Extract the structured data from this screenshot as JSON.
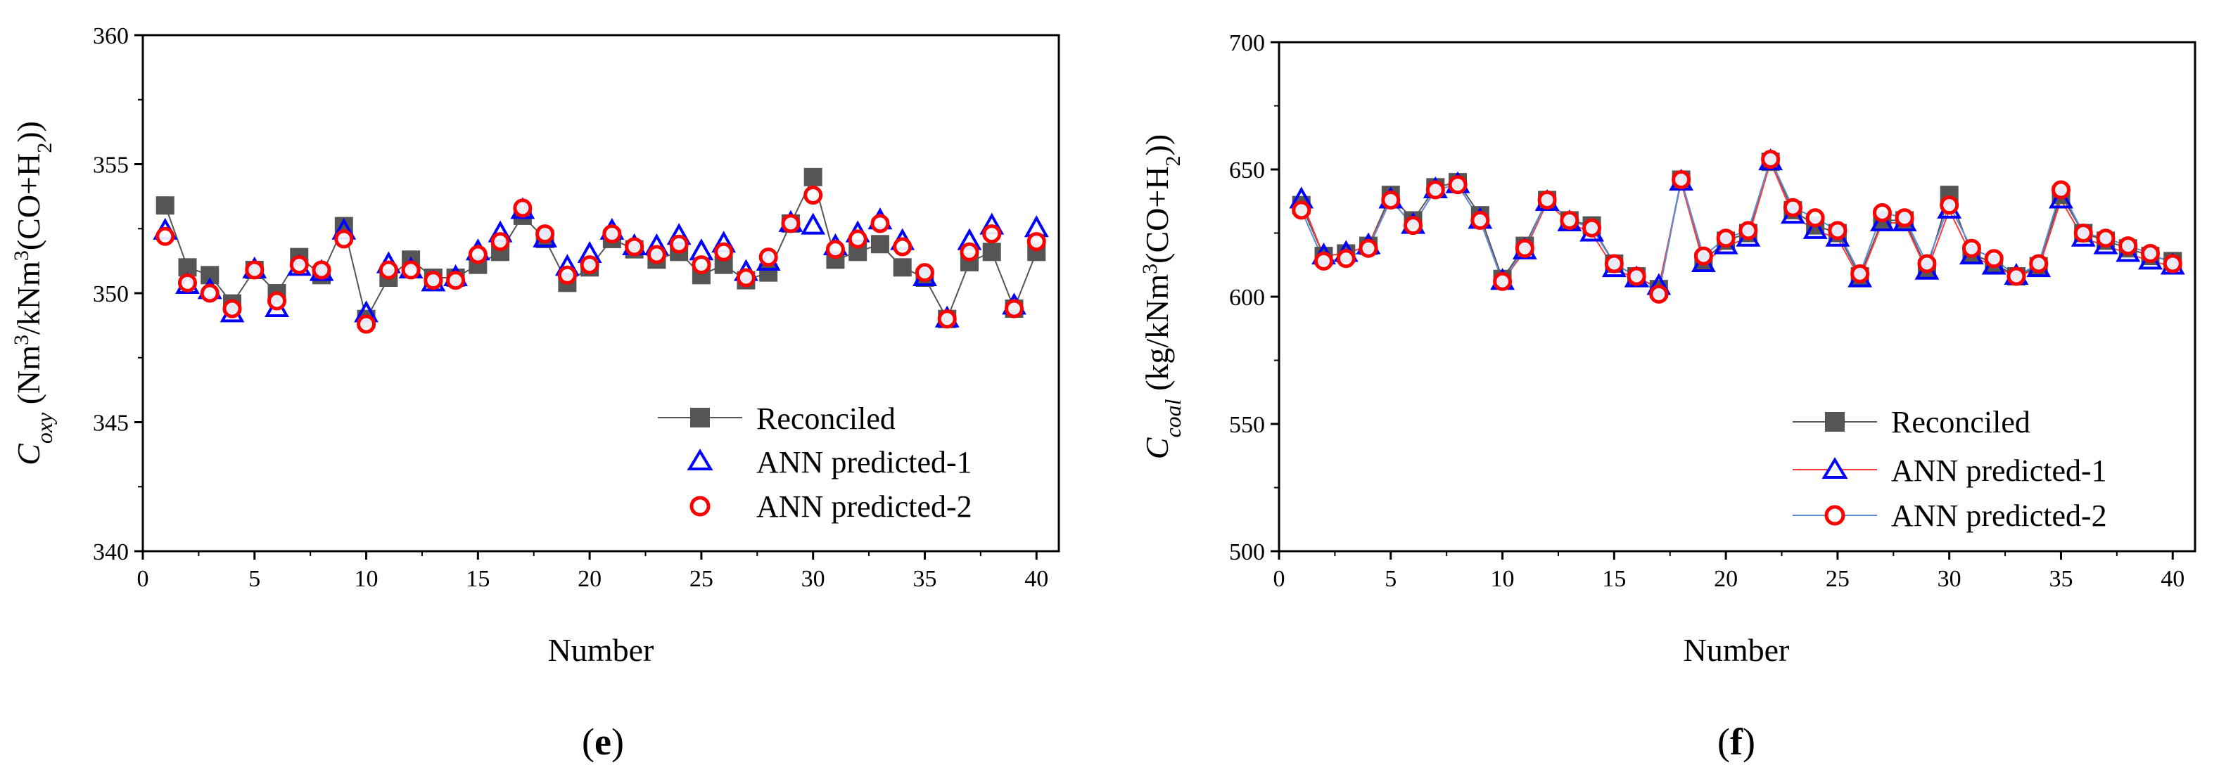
{
  "chart_data": [
    {
      "type": "line",
      "panel": "(e)",
      "panel_open": "(",
      "panel_letter": "e",
      "panel_close": ")",
      "xlabel": "Number",
      "ylabel_base": "C",
      "ylabel_sub": "oxy",
      "ylabel_unit1": " (Nm",
      "ylabel_sup": "3",
      "ylabel_unit2": "/kNm",
      "ylabel_sup2": "3",
      "ylabel_unit3": "(CO+H",
      "ylabel_sub2": "2",
      "ylabel_unit4": "))",
      "xlim": [
        0,
        41
      ],
      "ylim": [
        340,
        360
      ],
      "xticks": [
        0,
        5,
        10,
        15,
        20,
        25,
        30,
        35,
        40
      ],
      "yticks": [
        340,
        345,
        350,
        355,
        360
      ],
      "legend_position": "bottom-right",
      "x": [
        1,
        2,
        3,
        4,
        5,
        6,
        7,
        8,
        9,
        10,
        11,
        12,
        13,
        14,
        15,
        16,
        17,
        18,
        19,
        20,
        21,
        22,
        23,
        24,
        25,
        26,
        27,
        28,
        29,
        30,
        31,
        32,
        33,
        34,
        35,
        36,
        37,
        38,
        39,
        40
      ],
      "series": [
        {
          "name": "Reconciled",
          "marker": "square",
          "color": "#555555",
          "line": true,
          "line_color": "#555555",
          "values": [
            353.4,
            351.0,
            350.7,
            349.6,
            350.9,
            350.0,
            351.4,
            350.7,
            352.6,
            349.0,
            350.6,
            351.3,
            350.6,
            350.6,
            351.1,
            351.6,
            353.0,
            352.1,
            350.4,
            351.0,
            352.1,
            351.7,
            351.3,
            351.6,
            350.7,
            351.1,
            350.5,
            350.8,
            352.7,
            354.5,
            351.3,
            351.6,
            351.9,
            351.0,
            350.6,
            349.0,
            351.2,
            351.6,
            349.4,
            351.6
          ]
        },
        {
          "name": "ANN predicted-1",
          "marker": "triangle",
          "color": "#0000ff",
          "line": false,
          "values": [
            352.4,
            350.3,
            350.1,
            349.2,
            350.9,
            349.4,
            351.0,
            350.8,
            352.4,
            349.2,
            351.1,
            350.9,
            350.4,
            350.6,
            351.6,
            352.3,
            353.2,
            352.1,
            351.0,
            351.5,
            352.4,
            351.8,
            351.8,
            352.2,
            351.6,
            351.9,
            350.8,
            351.2,
            352.7,
            352.6,
            351.8,
            352.3,
            352.8,
            352.0,
            350.6,
            349.0,
            352.0,
            352.6,
            349.5,
            352.5
          ]
        },
        {
          "name": "ANN predicted-2",
          "marker": "circle",
          "color": "#ff0000",
          "line": false,
          "values": [
            352.2,
            350.4,
            350.0,
            349.4,
            350.9,
            349.7,
            351.1,
            350.9,
            352.1,
            348.8,
            350.9,
            350.9,
            350.5,
            350.5,
            351.5,
            352.0,
            353.3,
            352.3,
            350.7,
            351.1,
            352.3,
            351.8,
            351.5,
            351.9,
            351.1,
            351.6,
            350.6,
            351.4,
            352.7,
            353.8,
            351.7,
            352.1,
            352.7,
            351.8,
            350.8,
            349.0,
            351.6,
            352.3,
            349.4,
            352.0
          ]
        }
      ]
    },
    {
      "type": "line",
      "panel": "(f)",
      "panel_open": "(",
      "panel_letter": "f",
      "panel_close": ")",
      "xlabel": "Number",
      "ylabel_base": "C",
      "ylabel_sub": "coal",
      "ylabel_unit1": " (kg/kNm",
      "ylabel_sup": "3",
      "ylabel_unit2": "(CO+H",
      "ylabel_sub2": "2",
      "ylabel_unit3": "))",
      "xlim": [
        0,
        41
      ],
      "ylim": [
        500,
        700
      ],
      "xticks": [
        0,
        5,
        10,
        15,
        20,
        25,
        30,
        35,
        40
      ],
      "yticks": [
        500,
        550,
        600,
        650,
        700
      ],
      "legend_position": "bottom-right",
      "x": [
        1,
        2,
        3,
        4,
        5,
        6,
        7,
        8,
        9,
        10,
        11,
        12,
        13,
        14,
        15,
        16,
        17,
        18,
        19,
        20,
        21,
        22,
        23,
        24,
        25,
        26,
        27,
        28,
        29,
        30,
        31,
        32,
        33,
        34,
        35,
        36,
        37,
        38,
        39,
        40
      ],
      "series": [
        {
          "name": "Reconciled",
          "marker": "square",
          "color": "#555555",
          "line": true,
          "line_color": "#555555",
          "values": [
            636,
            616,
            617,
            620,
            640,
            630,
            643,
            645,
            632,
            607,
            620,
            638,
            630,
            628,
            613,
            608,
            603,
            646,
            614,
            622,
            625,
            653,
            634,
            628,
            625,
            608,
            630,
            630,
            611,
            640,
            617,
            613,
            608,
            612,
            640,
            625,
            622,
            619,
            616,
            614
          ]
        },
        {
          "name": "ANN predicted-1",
          "marker": "triangle",
          "color": "#0000ff",
          "line": true,
          "line_color": "#ff3b3b",
          "values": [
            638,
            616,
            617,
            620,
            638,
            628,
            642,
            644,
            630,
            606,
            618,
            637,
            629,
            625,
            611,
            607,
            604,
            645,
            613,
            620,
            623,
            653,
            632,
            626,
            623,
            607,
            629,
            629,
            610,
            634,
            616,
            612,
            608,
            611,
            638,
            623,
            620,
            617,
            614,
            612
          ]
        },
        {
          "name": "ANN predicted-2",
          "marker": "circle",
          "color": "#ff0000",
          "line": true,
          "line_color": "#5b8ed6",
          "values": [
            634,
            614,
            615,
            619,
            638,
            628,
            642,
            644,
            630,
            606,
            619,
            638,
            630,
            627,
            613,
            608,
            601,
            646,
            616,
            623,
            626,
            654,
            635,
            631,
            626,
            609,
            633,
            631,
            613,
            636,
            619,
            615,
            608,
            613,
            642,
            625,
            623,
            620,
            617,
            613
          ]
        }
      ]
    }
  ]
}
